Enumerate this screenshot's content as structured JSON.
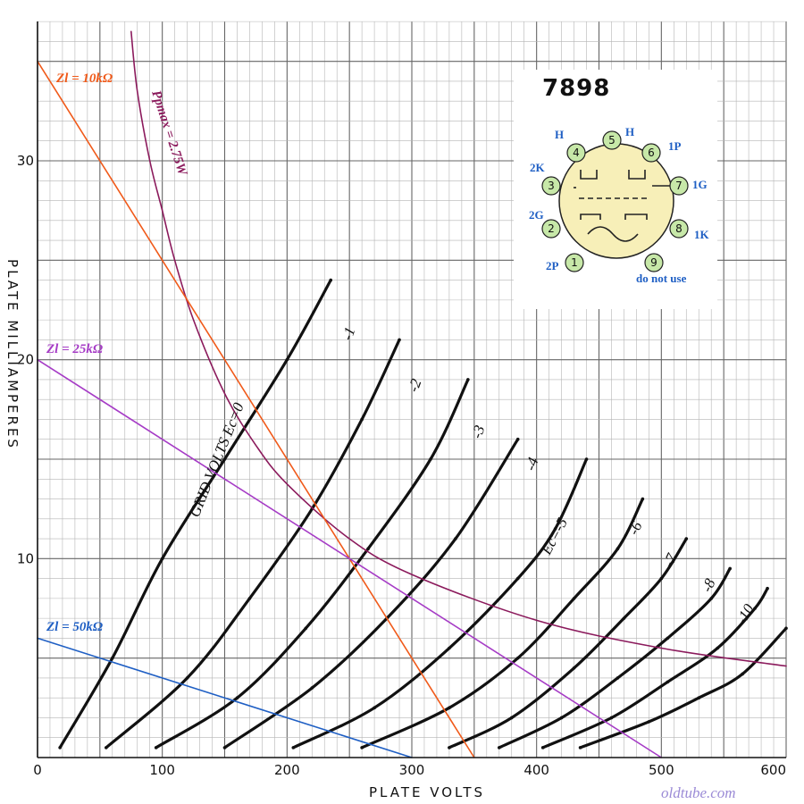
{
  "chart_data": {
    "type": "line",
    "title": "7898",
    "xlabel": "PLATE VOLTS",
    "ylabel": "PLATE MILLIAMPERES",
    "xlim": [
      0,
      600
    ],
    "ylim": [
      0,
      36
    ],
    "x_ticks": [
      "0",
      "100",
      "200",
      "300",
      "400",
      "500",
      "600"
    ],
    "y_ticks": [
      "10",
      "20",
      "30"
    ],
    "grid": true,
    "series": [
      {
        "name": "GRID VOLTS Ec=0",
        "label": "GRID VOLTS Ec=0",
        "color": "#111111",
        "x": [
          18,
          60,
          100,
          150,
          200,
          235
        ],
        "y": [
          0.5,
          5,
          10,
          15,
          20,
          24
        ]
      },
      {
        "name": "-1",
        "label": "-1",
        "color": "#111111",
        "x": [
          55,
          120,
          170,
          220,
          260,
          290
        ],
        "y": [
          0.5,
          4,
          8,
          12.5,
          17,
          21
        ]
      },
      {
        "name": "-2",
        "label": "-2",
        "color": "#111111",
        "x": [
          95,
          160,
          215,
          265,
          315,
          345
        ],
        "y": [
          0.5,
          3,
          6.5,
          10.5,
          15,
          19
        ]
      },
      {
        "name": "-3",
        "label": "-3",
        "color": "#111111",
        "x": [
          150,
          220,
          280,
          335,
          385
        ],
        "y": [
          0.5,
          3.5,
          7,
          11,
          16
        ]
      },
      {
        "name": "-4",
        "label": "-4",
        "color": "#111111",
        "x": [
          205,
          270,
          330,
          385,
          415,
          440
        ],
        "y": [
          0.5,
          2.5,
          5.5,
          9,
          11.5,
          15
        ]
      },
      {
        "name": "-5",
        "label": "Ec=-5",
        "color": "#111111",
        "x": [
          260,
          330,
          385,
          430,
          465,
          485
        ],
        "y": [
          0.5,
          2.5,
          5,
          8,
          10.5,
          13
        ]
      },
      {
        "name": "-6",
        "label": "-6",
        "color": "#111111",
        "x": [
          330,
          380,
          430,
          470,
          500,
          520
        ],
        "y": [
          0.5,
          2,
          4.5,
          7,
          9,
          11
        ]
      },
      {
        "name": "-7",
        "label": "-7",
        "color": "#111111",
        "x": [
          370,
          420,
          465,
          505,
          540,
          555
        ],
        "y": [
          0.5,
          2,
          4,
          6,
          8,
          9.5
        ]
      },
      {
        "name": "-8",
        "label": "-8",
        "color": "#111111",
        "x": [
          405,
          460,
          505,
          545,
          575,
          585
        ],
        "y": [
          0.5,
          2,
          3.8,
          5.5,
          7.5,
          8.5
        ]
      },
      {
        "name": "-10",
        "label": "-10",
        "color": "#111111",
        "x": [
          435,
          490,
          530,
          565,
          600
        ],
        "y": [
          0.5,
          1.8,
          3,
          4.2,
          6.5
        ]
      },
      {
        "name": "Ppmax = 2.75W",
        "label": "Ppmax = 2.75W",
        "color": "#8b1a5c",
        "x": [
          75,
          80,
          90,
          100,
          110,
          125,
          150,
          175,
          200,
          250,
          300,
          400,
          500,
          600
        ],
        "y": [
          36.5,
          33.5,
          30,
          27.5,
          25,
          22,
          18.3,
          15.7,
          13.75,
          11,
          9.2,
          6.9,
          5.5,
          4.6
        ]
      },
      {
        "name": "Zl = 10kΩ",
        "label": "Zl = 10kΩ",
        "color": "#f05a1a",
        "x": [
          0,
          350
        ],
        "y": [
          35,
          0
        ]
      },
      {
        "name": "Zl = 25kΩ",
        "label": "Zl = 25kΩ",
        "color": "#a63cc6",
        "x": [
          0,
          500
        ],
        "y": [
          20,
          0
        ]
      },
      {
        "name": "Zl = 50kΩ",
        "label": "Zl = 50kΩ",
        "color": "#1f5fc4",
        "x": [
          0,
          300
        ],
        "y": [
          6,
          0
        ]
      }
    ]
  },
  "tube": {
    "title": "7898",
    "pins": [
      {
        "num": "1",
        "label": "2P"
      },
      {
        "num": "2",
        "label": "2G"
      },
      {
        "num": "3",
        "label": "2K"
      },
      {
        "num": "4",
        "label": "H"
      },
      {
        "num": "5",
        "label": "H"
      },
      {
        "num": "6",
        "label": "1P"
      },
      {
        "num": "7",
        "label": "1G"
      },
      {
        "num": "8",
        "label": "1K"
      },
      {
        "num": "9",
        "label": "do not use"
      }
    ]
  },
  "watermark": "oldtube.com"
}
